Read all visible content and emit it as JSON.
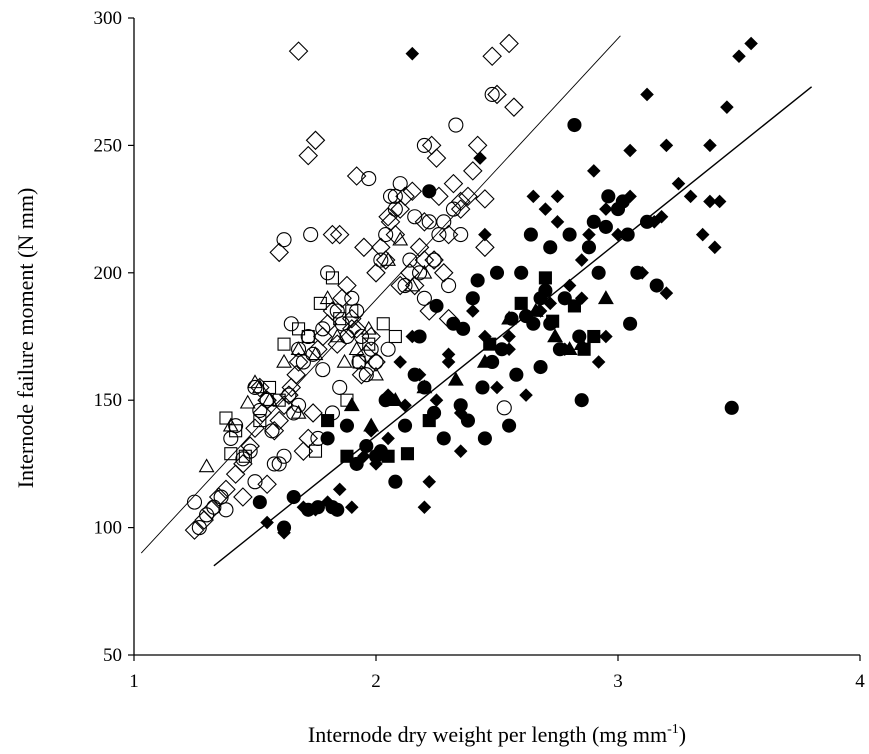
{
  "chart_data": {
    "type": "scatter",
    "xlabel": {
      "text": "Internode dry weight per length (mg mm",
      "sup": "-1",
      "suffix": ")"
    },
    "ylabel": "Internode failure moment (N mm)",
    "xlim": [
      1,
      4
    ],
    "ylim": [
      50,
      300
    ],
    "xticks": [
      "1",
      "2",
      "3",
      "4"
    ],
    "yticks": [
      "50",
      "100",
      "150",
      "200",
      "250",
      "300"
    ],
    "grid": false,
    "legend": "none",
    "lines": [
      {
        "x": [
          1.03,
          3.01
        ],
        "y": [
          90,
          293
        ],
        "stroke_width": 0.9
      },
      {
        "x": [
          1.33,
          3.8
        ],
        "y": [
          85,
          273
        ],
        "stroke_width": 1.4
      }
    ],
    "series": [
      {
        "marker": "diamond",
        "filled": false,
        "x": [
          1.25,
          1.29,
          1.32,
          1.35,
          1.38,
          1.42,
          1.45,
          1.48,
          1.5,
          1.53,
          1.55,
          1.58,
          1.6,
          1.62,
          1.64,
          1.65,
          1.67,
          1.68,
          1.7,
          1.72,
          1.74,
          1.76,
          1.78,
          1.8,
          1.82,
          1.84,
          1.86,
          1.88,
          1.9,
          1.92,
          1.94,
          1.96,
          1.98,
          2.0,
          2.02,
          2.04,
          2.06,
          2.08,
          2.1,
          2.12,
          2.14,
          2.16,
          2.18,
          2.2,
          2.22,
          2.24,
          2.26,
          2.28,
          2.3,
          2.32,
          2.35,
          2.38,
          2.4,
          2.42,
          2.45,
          2.48,
          2.5,
          2.55,
          2.57,
          1.68,
          1.72,
          1.92,
          2.23,
          1.6,
          1.52,
          1.85,
          1.95,
          2.05,
          2.15,
          2.25,
          2.35,
          2.45,
          1.75,
          1.82,
          1.9,
          2.0,
          2.1,
          2.2,
          2.3,
          1.45,
          1.55
        ],
        "y": [
          99,
          103,
          107,
          112,
          115,
          121,
          125,
          132,
          139,
          145,
          150,
          138,
          142,
          148,
          152,
          155,
          160,
          165,
          130,
          135,
          145,
          170,
          175,
          180,
          185,
          172,
          190,
          195,
          182,
          178,
          160,
          168,
          175,
          200,
          210,
          205,
          220,
          215,
          225,
          230,
          200,
          195,
          210,
          220,
          185,
          205,
          230,
          200,
          215,
          235,
          225,
          230,
          240,
          250,
          210,
          285,
          270,
          290,
          265,
          287,
          246,
          238,
          250,
          208,
          155,
          215,
          210,
          222,
          232,
          245,
          228,
          229,
          252,
          215,
          178,
          165,
          195,
          205,
          182,
          112,
          117
        ]
      },
      {
        "marker": "circle",
        "filled": false,
        "x": [
          1.25,
          1.27,
          1.3,
          1.33,
          1.36,
          1.38,
          1.4,
          1.42,
          1.45,
          1.48,
          1.5,
          1.52,
          1.55,
          1.57,
          1.6,
          1.62,
          1.64,
          1.66,
          1.68,
          1.7,
          1.72,
          1.74,
          1.76,
          1.78,
          1.8,
          1.82,
          1.84,
          1.86,
          1.88,
          1.9,
          1.92,
          1.94,
          1.96,
          1.98,
          2.0,
          2.02,
          2.04,
          2.06,
          2.08,
          2.1,
          2.12,
          2.14,
          2.16,
          2.18,
          2.2,
          2.22,
          2.24,
          2.26,
          2.28,
          2.3,
          2.32,
          2.35,
          1.62,
          1.73,
          1.97,
          2.08,
          2.2,
          2.33,
          2.48,
          2.53,
          1.68,
          1.85,
          2.05,
          1.5,
          1.58,
          1.65,
          1.78,
          1.93
        ],
        "y": [
          110,
          100,
          105,
          108,
          112,
          107,
          135,
          140,
          127,
          130,
          155,
          146,
          150,
          138,
          125,
          128,
          152,
          145,
          170,
          165,
          175,
          168,
          135,
          178,
          200,
          145,
          185,
          180,
          175,
          190,
          185,
          175,
          160,
          170,
          165,
          205,
          215,
          230,
          225,
          235,
          195,
          205,
          222,
          200,
          190,
          220,
          205,
          215,
          220,
          195,
          225,
          215,
          213,
          215,
          237,
          230,
          250,
          258,
          270,
          147,
          148,
          155,
          170,
          118,
          125,
          180,
          162,
          165
        ]
      },
      {
        "marker": "square",
        "filled": false,
        "x": [
          1.38,
          1.42,
          1.46,
          1.52,
          1.56,
          1.62,
          1.68,
          1.72,
          1.77,
          1.82,
          1.85,
          1.88,
          1.93,
          1.97,
          2.03,
          2.08,
          1.4,
          1.6,
          1.75,
          1.9
        ],
        "y": [
          143,
          138,
          128,
          142,
          155,
          172,
          178,
          175,
          188,
          198,
          182,
          150,
          165,
          172,
          180,
          175,
          129,
          150,
          130,
          185
        ]
      },
      {
        "marker": "triangle",
        "filled": false,
        "x": [
          1.3,
          1.4,
          1.47,
          1.5,
          1.56,
          1.62,
          1.68,
          1.75,
          1.8,
          1.84,
          1.87,
          1.92,
          1.97,
          2.0,
          2.05,
          2.1,
          2.15,
          2.2,
          1.52,
          1.68
        ],
        "y": [
          124,
          140,
          149,
          157,
          150,
          165,
          170,
          168,
          190,
          175,
          165,
          170,
          178,
          160,
          205,
          213,
          195,
          200,
          155,
          145
        ]
      },
      {
        "marker": "diamond",
        "filled": true,
        "x": [
          1.55,
          1.62,
          1.7,
          1.75,
          1.8,
          1.85,
          1.9,
          1.95,
          2.0,
          2.05,
          2.1,
          2.15,
          2.2,
          2.25,
          2.3,
          2.35,
          2.4,
          2.45,
          2.5,
          2.55,
          2.6,
          2.65,
          2.7,
          2.75,
          2.8,
          2.85,
          2.9,
          2.95,
          3.0,
          3.05,
          3.1,
          3.15,
          3.2,
          3.25,
          3.3,
          3.35,
          3.4,
          3.45,
          3.5,
          3.55,
          2.15,
          2.43,
          2.75,
          2.88,
          3.08,
          3.38,
          2.22,
          2.35,
          2.62,
          2.85,
          2.95,
          3.12,
          3.2,
          3.42,
          3.38,
          2.05,
          2.18,
          2.45,
          2.68,
          2.78,
          2.92,
          3.05,
          3.18,
          1.98,
          2.12,
          2.3,
          2.55,
          2.72
        ],
        "y": [
          102,
          98,
          108,
          107,
          110,
          115,
          108,
          128,
          125,
          152,
          165,
          175,
          108,
          150,
          168,
          145,
          185,
          175,
          155,
          175,
          200,
          230,
          225,
          220,
          195,
          205,
          240,
          225,
          215,
          230,
          200,
          220,
          250,
          235,
          230,
          215,
          210,
          265,
          285,
          290,
          286,
          245,
          230,
          215,
          200,
          228,
          118,
          130,
          152,
          190,
          175,
          270,
          192,
          228,
          250,
          135,
          160,
          215,
          185,
          170,
          165,
          248,
          222,
          138,
          148,
          165,
          170,
          188
        ]
      },
      {
        "marker": "circle",
        "filled": true,
        "x": [
          1.52,
          1.62,
          1.66,
          1.72,
          1.76,
          1.8,
          1.84,
          1.88,
          1.92,
          1.96,
          2.0,
          2.04,
          2.08,
          2.12,
          2.16,
          2.2,
          2.24,
          2.28,
          2.32,
          2.36,
          2.4,
          2.44,
          2.48,
          2.52,
          2.56,
          2.6,
          2.64,
          2.68,
          2.72,
          2.76,
          2.8,
          2.84,
          2.88,
          2.92,
          2.96,
          3.0,
          3.04,
          3.08,
          3.12,
          3.16,
          2.22,
          2.42,
          2.62,
          2.82,
          3.02,
          3.47,
          2.25,
          2.45,
          2.65,
          2.85,
          2.58,
          2.72,
          2.9,
          3.05,
          2.38,
          2.55,
          2.7,
          2.78,
          2.95,
          1.82,
          2.02,
          2.18,
          2.35,
          2.5,
          2.68
        ],
        "y": [
          110,
          100,
          112,
          107,
          108,
          135,
          107,
          140,
          125,
          132,
          128,
          150,
          118,
          140,
          160,
          155,
          145,
          135,
          180,
          178,
          190,
          155,
          165,
          170,
          182,
          200,
          215,
          190,
          180,
          170,
          215,
          175,
          210,
          200,
          230,
          225,
          215,
          200,
          220,
          195,
          232,
          197,
          183,
          258,
          228,
          147,
          187,
          135,
          180,
          150,
          160,
          210,
          220,
          180,
          142,
          140,
          193,
          190,
          218,
          108,
          130,
          175,
          148,
          200,
          163
        ]
      },
      {
        "marker": "square",
        "filled": true,
        "x": [
          1.8,
          1.88,
          2.05,
          2.13,
          2.22,
          2.47,
          2.6,
          2.7,
          2.73,
          2.82,
          2.86,
          2.9
        ],
        "y": [
          142,
          128,
          128,
          129,
          142,
          172,
          188,
          198,
          181,
          187,
          170,
          175
        ]
      },
      {
        "marker": "triangle",
        "filled": true,
        "x": [
          1.9,
          1.98,
          2.08,
          2.2,
          2.33,
          2.45,
          2.55,
          2.66,
          2.74,
          2.8,
          2.85,
          2.95
        ],
        "y": [
          148,
          140,
          150,
          155,
          158,
          165,
          182,
          185,
          175,
          170,
          172,
          190
        ]
      }
    ]
  }
}
